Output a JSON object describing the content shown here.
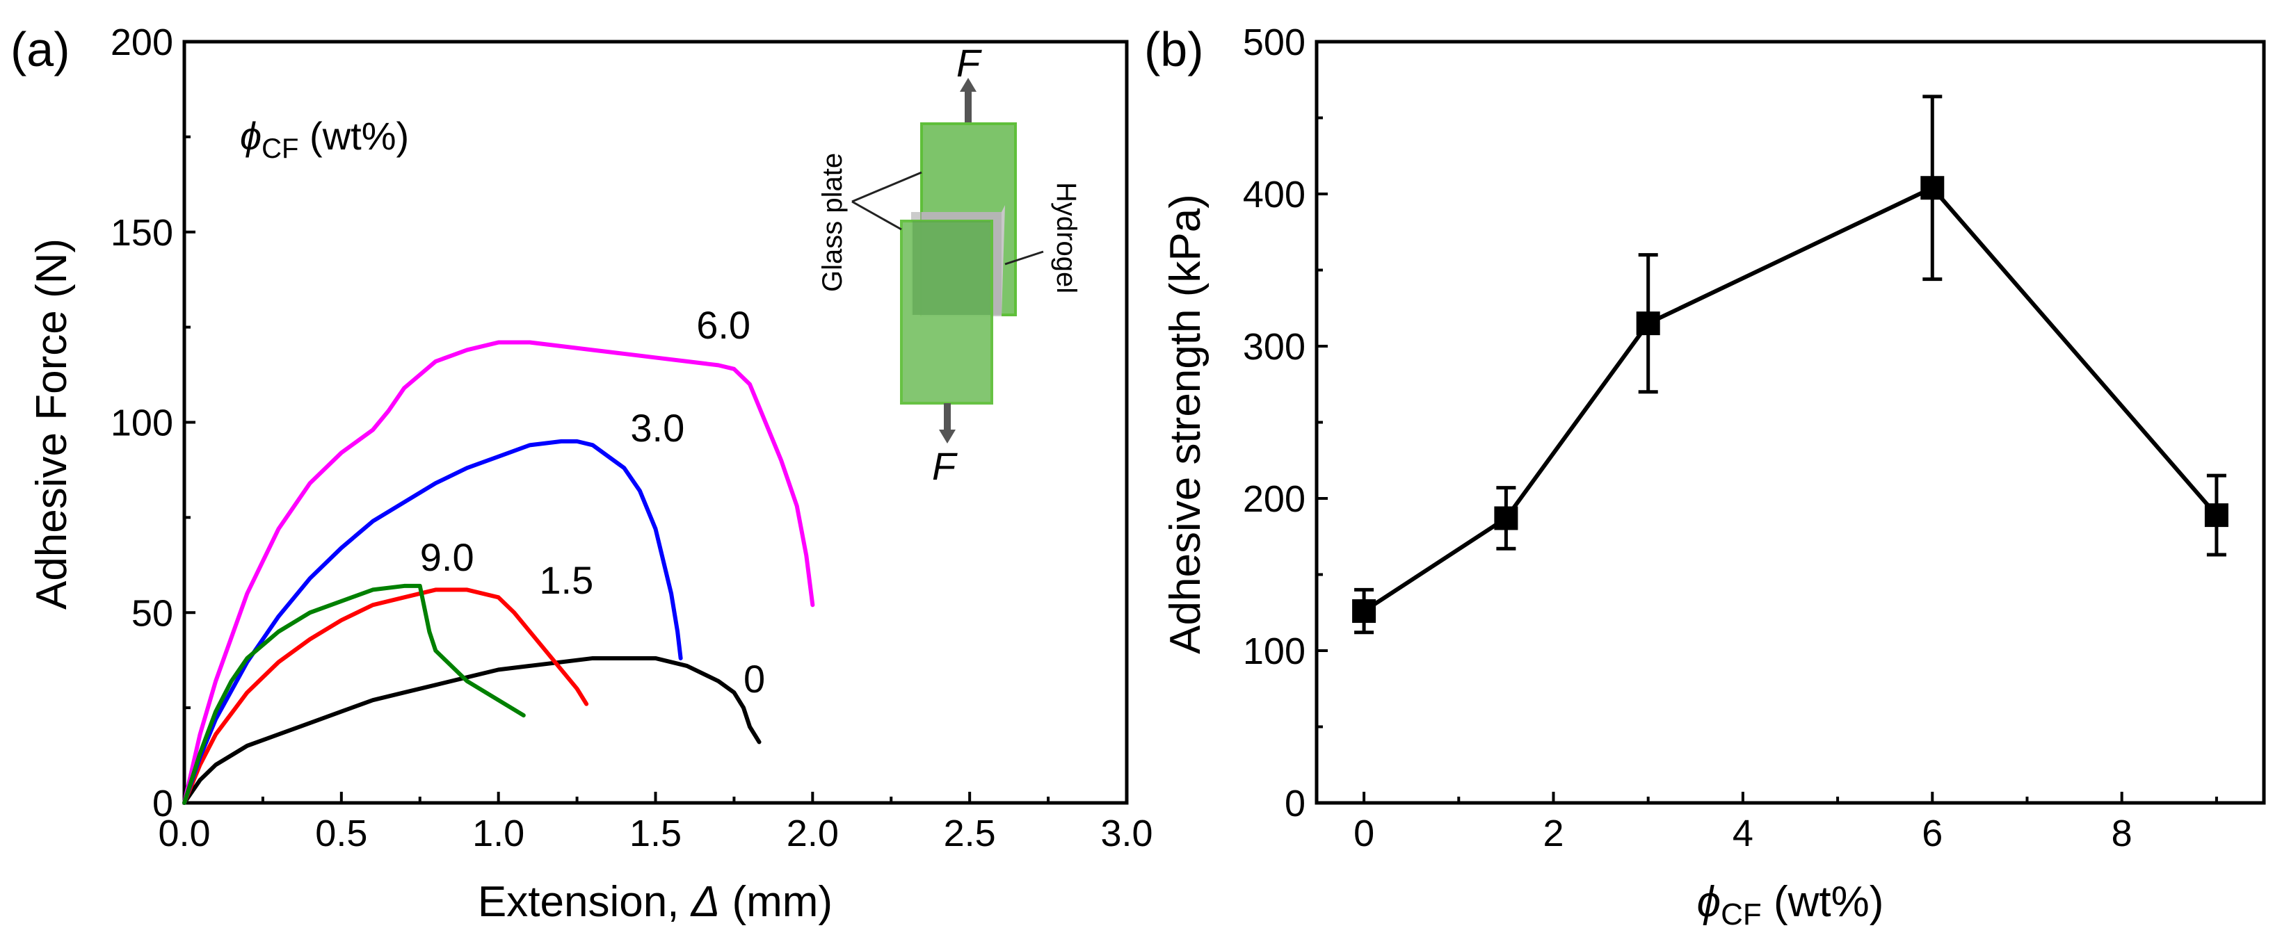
{
  "chart_data": [
    {
      "panel_label": "(a)",
      "type": "line",
      "xlabel_main": "Extension, ",
      "xlabel_symbol": "Δ",
      "xlabel_unit": " (mm)",
      "ylabel": "Adhesive Force (N)",
      "xlim": [
        0,
        3.0
      ],
      "ylim": [
        0,
        200
      ],
      "xticks": [
        0.0,
        0.5,
        1.0,
        1.5,
        2.0,
        2.5,
        3.0
      ],
      "xtick_labels": [
        "0.0",
        "0.5",
        "1.0",
        "1.5",
        "2.0",
        "2.5",
        "3.0"
      ],
      "yticks": [
        0,
        50,
        100,
        150,
        200
      ],
      "ytick_labels": [
        "0",
        "50",
        "100",
        "150",
        "200"
      ],
      "legend_title": {
        "symbol": "ϕ",
        "sub": "CF",
        "unit": " (wt%)"
      },
      "series": [
        {
          "name": "0",
          "color": "#000000",
          "x": [
            0,
            0.05,
            0.1,
            0.2,
            0.3,
            0.4,
            0.5,
            0.6,
            0.7,
            0.8,
            0.9,
            1.0,
            1.1,
            1.2,
            1.3,
            1.4,
            1.5,
            1.6,
            1.7,
            1.75,
            1.78,
            1.8,
            1.83
          ],
          "y": [
            0,
            6,
            10,
            15,
            18,
            21,
            24,
            27,
            29,
            31,
            33,
            35,
            36,
            37,
            38,
            38,
            38,
            36,
            32,
            29,
            25,
            20,
            16
          ]
        },
        {
          "name": "1.5",
          "color": "#ff0000",
          "x": [
            0,
            0.05,
            0.1,
            0.2,
            0.3,
            0.4,
            0.5,
            0.6,
            0.7,
            0.8,
            0.9,
            1.0,
            1.05,
            1.1,
            1.15,
            1.2,
            1.25,
            1.28
          ],
          "y": [
            0,
            10,
            18,
            29,
            37,
            43,
            48,
            52,
            54,
            56,
            56,
            54,
            50,
            45,
            40,
            35,
            30,
            26
          ]
        },
        {
          "name": "3.0",
          "color": "#0000ff",
          "x": [
            0,
            0.05,
            0.1,
            0.2,
            0.3,
            0.4,
            0.5,
            0.6,
            0.7,
            0.8,
            0.9,
            1.0,
            1.1,
            1.2,
            1.25,
            1.3,
            1.4,
            1.45,
            1.5,
            1.55,
            1.57,
            1.58
          ],
          "y": [
            0,
            12,
            22,
            37,
            49,
            59,
            67,
            74,
            79,
            84,
            88,
            91,
            94,
            95,
            95,
            94,
            88,
            82,
            72,
            55,
            45,
            38
          ]
        },
        {
          "name": "6.0",
          "color": "#ff00ff",
          "x": [
            0,
            0.05,
            0.1,
            0.2,
            0.3,
            0.4,
            0.5,
            0.6,
            0.65,
            0.7,
            0.8,
            0.9,
            1.0,
            1.1,
            1.2,
            1.3,
            1.4,
            1.5,
            1.6,
            1.7,
            1.75,
            1.8,
            1.85,
            1.9,
            1.95,
            1.98,
            2.0
          ],
          "y": [
            0,
            18,
            32,
            55,
            72,
            84,
            92,
            98,
            103,
            109,
            116,
            119,
            121,
            121,
            120,
            119,
            118,
            117,
            116,
            115,
            114,
            110,
            100,
            90,
            78,
            65,
            52
          ]
        },
        {
          "name": "9.0",
          "color": "#008000",
          "x": [
            0,
            0.05,
            0.1,
            0.15,
            0.2,
            0.3,
            0.4,
            0.5,
            0.6,
            0.7,
            0.75,
            0.78,
            0.8,
            0.85,
            0.9,
            1.0,
            1.08
          ],
          "y": [
            0,
            13,
            24,
            32,
            38,
            45,
            50,
            53,
            56,
            57,
            57,
            45,
            40,
            36,
            32,
            27,
            23
          ]
        }
      ],
      "curve_labels": [
        {
          "text": "6.0",
          "x": 1.63,
          "y": 122,
          "color": "#ff00ff"
        },
        {
          "text": "3.0",
          "x": 1.42,
          "y": 95,
          "color": "#0000ff"
        },
        {
          "text": "9.0",
          "x": 0.75,
          "y": 61,
          "color": "#008000"
        },
        {
          "text": "1.5",
          "x": 1.13,
          "y": 55,
          "color": "#ff0000"
        },
        {
          "text": "0",
          "x": 1.78,
          "y": 29,
          "color": "#000000"
        }
      ],
      "inset": {
        "force_label": "F",
        "glass_plate_label": "Glass plate",
        "hydrogel_label": "Hydrogel"
      }
    },
    {
      "panel_label": "(b)",
      "type": "scatter",
      "xlabel": {
        "symbol": "ϕ",
        "sub": "CF",
        "unit": " (wt%)"
      },
      "ylabel": "Adhesive strength (kPa)",
      "xlim": [
        -0.5,
        9.5
      ],
      "ylim": [
        0,
        500
      ],
      "xticks": [
        0,
        2,
        4,
        6,
        8
      ],
      "xtick_labels": [
        "0",
        "2",
        "4",
        "6",
        "8"
      ],
      "yticks": [
        0,
        100,
        200,
        300,
        400,
        500
      ],
      "ytick_labels": [
        "0",
        "100",
        "200",
        "300",
        "400",
        "500"
      ],
      "series": [
        {
          "name": "Adhesive strength",
          "color": "#000000",
          "x": [
            0,
            1.5,
            3,
            6,
            9
          ],
          "y": [
            126,
            187,
            315,
            404,
            189
          ],
          "yerr_low": [
            14,
            20,
            45,
            60,
            26
          ],
          "yerr_high": [
            14,
            20,
            45,
            60,
            26
          ]
        }
      ]
    }
  ]
}
